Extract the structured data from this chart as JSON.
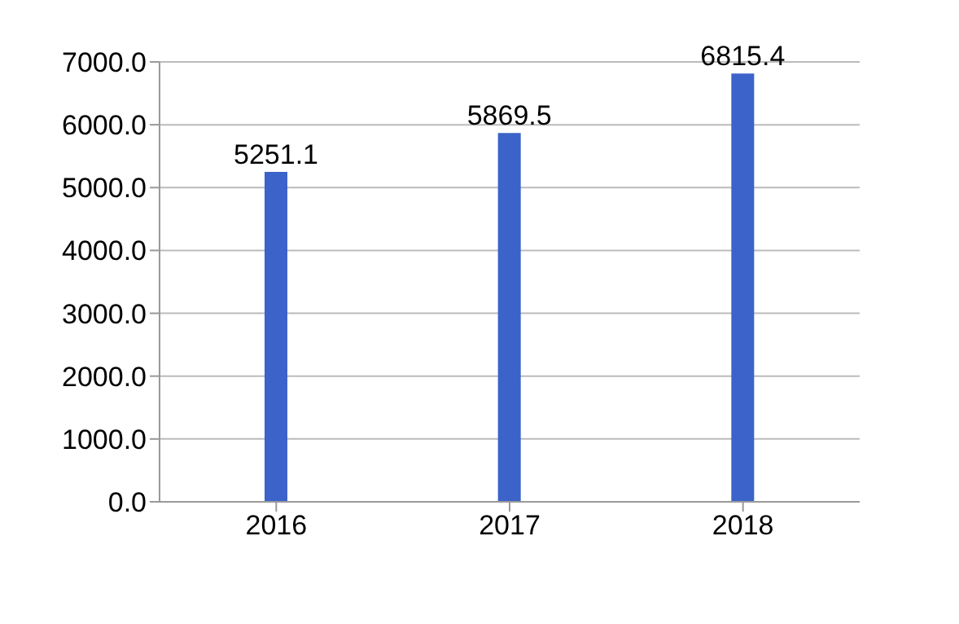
{
  "chart_data": {
    "type": "bar",
    "categories": [
      "2016",
      "2017",
      "2018"
    ],
    "values": [
      5251.1,
      5869.5,
      6815.4
    ],
    "color": "#3b63c9",
    "ylim": [
      0,
      7000
    ],
    "yticks": [
      {
        "value": 0,
        "label": "0.0"
      },
      {
        "value": 1000,
        "label": "1000.0"
      },
      {
        "value": 2000,
        "label": "2000.0"
      },
      {
        "value": 3000,
        "label": "3000.0"
      },
      {
        "value": 4000,
        "label": "4000.0"
      },
      {
        "value": 5000,
        "label": "5000.0"
      },
      {
        "value": 6000,
        "label": "6000.0"
      },
      {
        "value": 7000,
        "label": "7000.0"
      }
    ],
    "grid": "y",
    "data_labels": true
  }
}
